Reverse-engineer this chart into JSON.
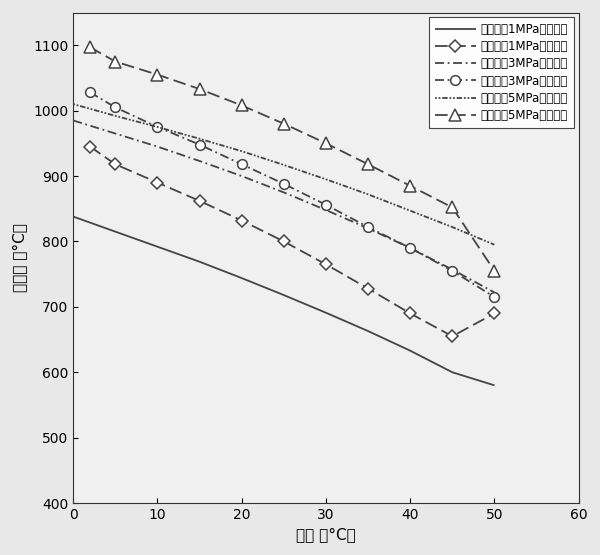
{
  "xlabel": "水温 （°C）",
  "ylabel": "熔压点 （°C）",
  "xlim": [
    0,
    60
  ],
  "ylim": [
    400,
    1150
  ],
  "xticks": [
    0,
    10,
    20,
    30,
    40,
    50,
    60
  ],
  "yticks": [
    400,
    500,
    600,
    700,
    800,
    900,
    1000,
    1100
  ],
  "series": [
    {
      "label": "喷射压力1MPa（无框）",
      "x": [
        0,
        5,
        10,
        15,
        20,
        25,
        30,
        35,
        40,
        45,
        50
      ],
      "y": [
        838,
        815,
        792,
        769,
        744,
        718,
        691,
        663,
        633,
        600,
        580
      ],
      "linestyle": "solid",
      "marker": null,
      "color": "#444444",
      "linewidth": 1.3
    },
    {
      "label": "喷射压力1MPa（有框）",
      "x": [
        2,
        5,
        10,
        15,
        20,
        25,
        30,
        35,
        40,
        45,
        50
      ],
      "y": [
        945,
        918,
        890,
        862,
        832,
        800,
        765,
        728,
        690,
        655,
        690
      ],
      "linestyle": "dashed",
      "marker": "D",
      "color": "#444444",
      "linewidth": 1.3
    },
    {
      "label": "喷射压力3MPa（无框）",
      "x": [
        0,
        5,
        10,
        15,
        20,
        25,
        30,
        35,
        40,
        45,
        50
      ],
      "y": [
        985,
        965,
        945,
        923,
        900,
        875,
        848,
        820,
        790,
        757,
        722
      ],
      "linestyle": "dashdot",
      "marker": null,
      "color": "#444444",
      "linewidth": 1.3
    },
    {
      "label": "喷射压力3MPa（有框）",
      "x": [
        2,
        5,
        10,
        15,
        20,
        25,
        30,
        35,
        40,
        45,
        50
      ],
      "y": [
        1028,
        1005,
        975,
        948,
        918,
        888,
        856,
        822,
        790,
        755,
        715
      ],
      "linestyle": "dashdot",
      "marker": "o",
      "color": "#444444",
      "linewidth": 1.3
    },
    {
      "label": "喷射压力5MPa（无框）",
      "x": [
        0,
        5,
        10,
        15,
        20,
        25,
        30,
        35,
        40,
        45,
        50
      ],
      "y": [
        1010,
        992,
        975,
        957,
        938,
        917,
        895,
        872,
        847,
        822,
        795
      ],
      "linestyle": "densedot",
      "marker": null,
      "color": "#444444",
      "linewidth": 1.3
    },
    {
      "label": "喷射压力5MPa（有框）",
      "x": [
        2,
        5,
        10,
        15,
        20,
        25,
        30,
        35,
        40,
        45,
        50
      ],
      "y": [
        1097,
        1075,
        1055,
        1033,
        1008,
        980,
        950,
        918,
        885,
        852,
        755
      ],
      "linestyle": "dashed",
      "marker": "^",
      "color": "#444444",
      "linewidth": 1.3
    }
  ],
  "legend_fontsize": 8.5,
  "axis_fontsize": 11,
  "tick_fontsize": 10,
  "bg_color": "#e8e8e8",
  "plot_bg_color": "#f0f0f0"
}
